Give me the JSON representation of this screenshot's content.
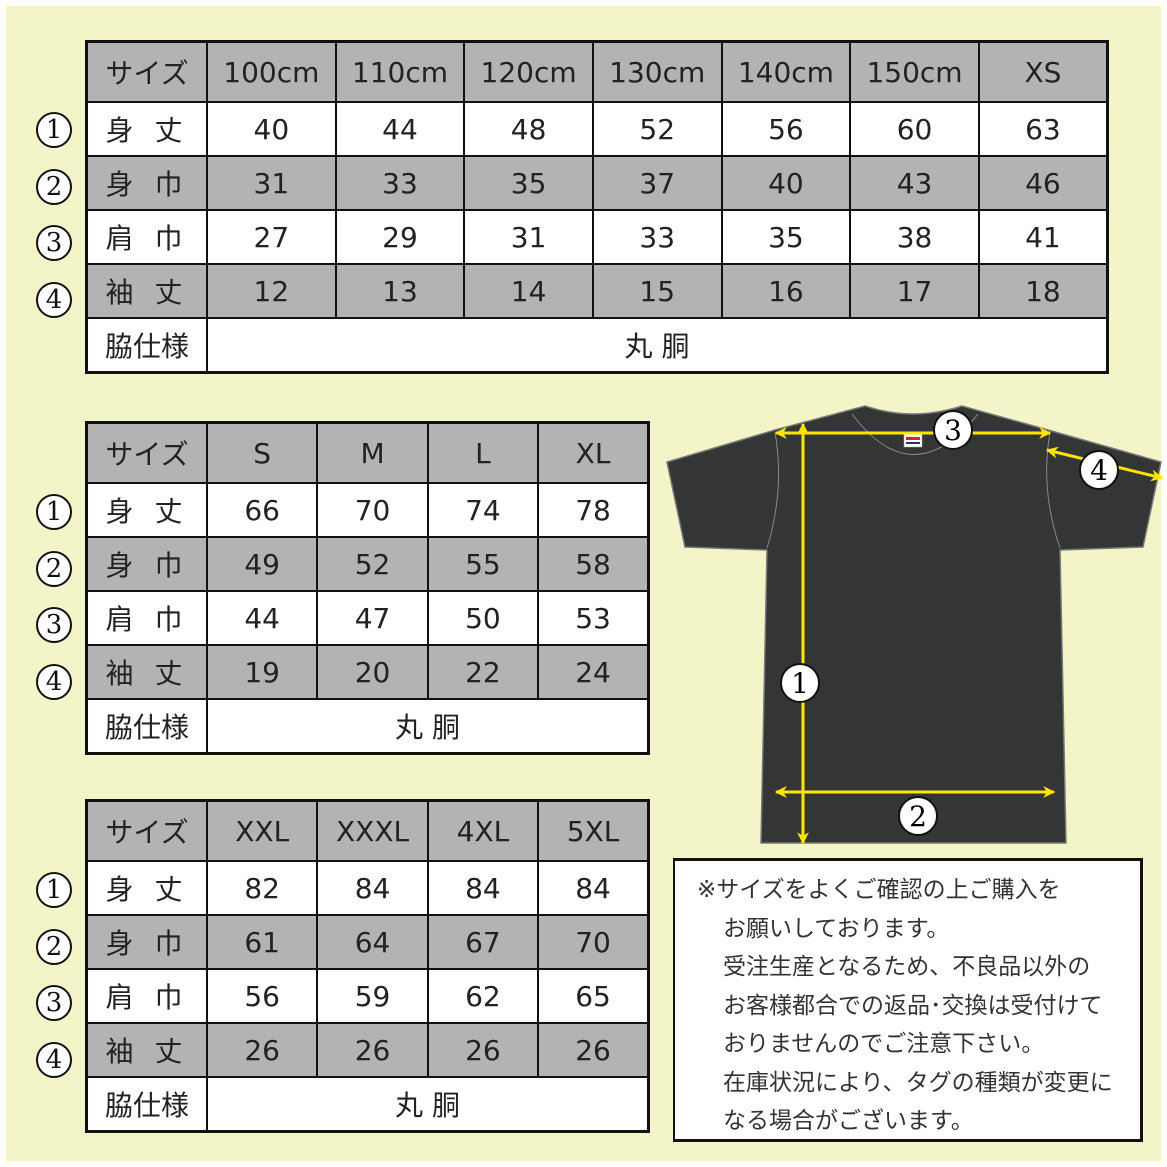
{
  "colors": {
    "background": "#f3f5c8",
    "row_gray": "#b3b3b3",
    "shirt": "#333635",
    "arrow": "#ffe500"
  },
  "row_labels": [
    "身 丈",
    "身 巾",
    "肩 巾",
    "袖 丈"
  ],
  "row_numbers": [
    "1",
    "2",
    "3",
    "4"
  ],
  "size_label": "サイズ",
  "side_label": "脇仕様",
  "side_value": "丸 胴",
  "tables": [
    {
      "sizes": [
        "100cm",
        "110cm",
        "120cm",
        "130cm",
        "140cm",
        "150cm",
        "XS"
      ],
      "rows": [
        [
          "40",
          "44",
          "48",
          "52",
          "56",
          "60",
          "63"
        ],
        [
          "31",
          "33",
          "35",
          "37",
          "40",
          "43",
          "46"
        ],
        [
          "27",
          "29",
          "31",
          "33",
          "35",
          "38",
          "41"
        ],
        [
          "12",
          "13",
          "14",
          "15",
          "16",
          "17",
          "18"
        ]
      ]
    },
    {
      "sizes": [
        "S",
        "M",
        "L",
        "XL"
      ],
      "rows": [
        [
          "66",
          "70",
          "74",
          "78"
        ],
        [
          "49",
          "52",
          "55",
          "58"
        ],
        [
          "44",
          "47",
          "50",
          "53"
        ],
        [
          "19",
          "20",
          "22",
          "24"
        ]
      ]
    },
    {
      "sizes": [
        "XXL",
        "XXXL",
        "4XL",
        "5XL"
      ],
      "rows": [
        [
          "82",
          "84",
          "84",
          "84"
        ],
        [
          "61",
          "64",
          "67",
          "70"
        ],
        [
          "56",
          "59",
          "62",
          "65"
        ],
        [
          "26",
          "26",
          "26",
          "26"
        ]
      ]
    }
  ],
  "diagram": {
    "markers": [
      "3",
      "4",
      "1",
      "2"
    ]
  },
  "note": [
    "※サイズをよくご確認の上ご購入を",
    "お願いしております。",
    "受注生産となるため、不良品以外の",
    "お客様都合での返品･交換は受付けて",
    "おりませんのでご注意下さい。",
    "在庫状況により、タグの種類が変更に",
    "なる場合がございます。"
  ]
}
